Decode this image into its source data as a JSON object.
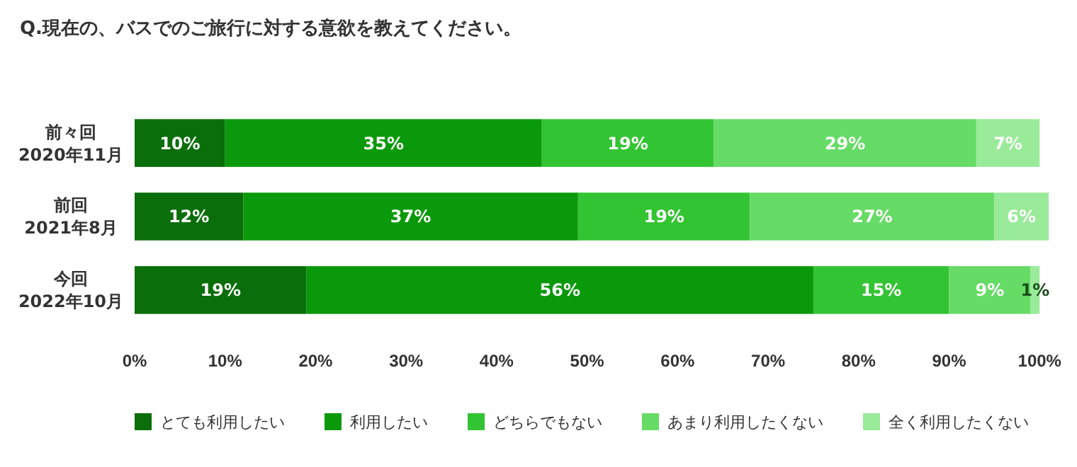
{
  "chart_data": {
    "type": "bar",
    "orientation": "horizontal",
    "stacked": true,
    "title": "Q.現在の、バスでのご旅行に対する意欲を教えてください。",
    "categories": [
      "前々回\n2020年11月",
      "前回\n2021年8月",
      "今回\n2022年10月"
    ],
    "series": [
      {
        "name": "とても利用したい",
        "color": "#0a6e0a",
        "values": [
          10,
          12,
          19
        ],
        "value_labels": [
          "10%",
          "12%",
          "19%"
        ]
      },
      {
        "name": "利用したい",
        "color": "#0a990a",
        "values": [
          35,
          37,
          56
        ],
        "value_labels": [
          "35%",
          "37%",
          "56%"
        ]
      },
      {
        "name": "どちらでもない",
        "color": "#33c433",
        "values": [
          19,
          19,
          15
        ],
        "value_labels": [
          "19%",
          "19%",
          "15%"
        ]
      },
      {
        "name": "あまり利用したくない",
        "color": "#66db66",
        "values": [
          29,
          27,
          9
        ],
        "value_labels": [
          "29%",
          "27%",
          "9%"
        ]
      },
      {
        "name": "全く利用したくない",
        "color": "#99ea99",
        "values": [
          7,
          6,
          1
        ],
        "value_labels": [
          "7%",
          "6%",
          "1%"
        ]
      }
    ],
    "xlim": [
      0,
      101
    ],
    "xticks": [
      {
        "value": 0,
        "label": "0%"
      },
      {
        "value": 10,
        "label": "10%"
      },
      {
        "value": 20,
        "label": "20%"
      },
      {
        "value": 30,
        "label": "30%"
      },
      {
        "value": 40,
        "label": "40%"
      },
      {
        "value": 50,
        "label": "50%"
      },
      {
        "value": 60,
        "label": "60%"
      },
      {
        "value": 70,
        "label": "70%"
      },
      {
        "value": 80,
        "label": "80%"
      },
      {
        "value": 90,
        "label": "90%"
      },
      {
        "value": 100,
        "label": "100%"
      }
    ],
    "legend": "bottom",
    "grid": false
  }
}
